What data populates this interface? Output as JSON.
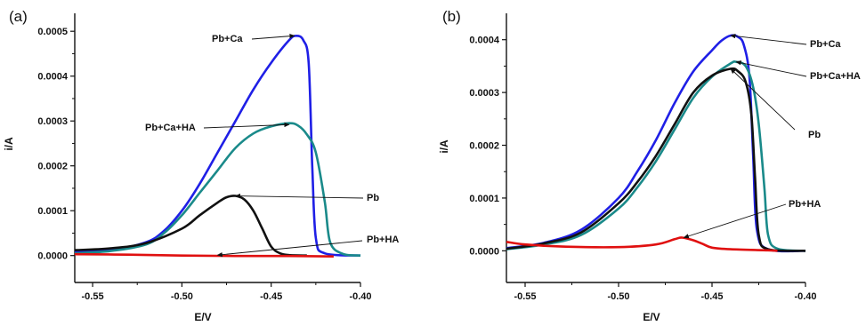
{
  "chart_data": [
    {
      "panel_label": "(a)",
      "type": "line",
      "xlabel": "E/V",
      "ylabel": "i/A",
      "xlim": [
        -0.56,
        -0.4
      ],
      "ylim": [
        -6e-05,
        0.00054
      ],
      "xticks": [
        -0.55,
        -0.5,
        -0.45,
        -0.4
      ],
      "xtick_labels": [
        "-0.55",
        "-0.50",
        "-0.45",
        "-0.40"
      ],
      "yticks": [
        0.0,
        0.0001,
        0.0002,
        0.0003,
        0.0004,
        0.0005
      ],
      "ytick_labels": [
        "0.0000",
        "0.0001",
        "0.0002",
        "0.0003",
        "0.0004",
        "0.0005"
      ],
      "grid": false,
      "series": [
        {
          "name": "Pb+Ca",
          "color": "#1f1fe6",
          "points": [
            [
              -0.56,
              8e-06
            ],
            [
              -0.54,
              1.2e-05
            ],
            [
              -0.52,
              3e-05
            ],
            [
              -0.51,
              5.5e-05
            ],
            [
              -0.5,
              0.0001
            ],
            [
              -0.49,
              0.00016
            ],
            [
              -0.48,
              0.00023
            ],
            [
              -0.47,
              0.0003
            ],
            [
              -0.46,
              0.00037
            ],
            [
              -0.45,
              0.00043
            ],
            [
              -0.44,
              0.00048
            ],
            [
              -0.436,
              0.00049
            ],
            [
              -0.432,
              0.00048
            ],
            [
              -0.429,
              0.00043
            ],
            [
              -0.427,
              0.0002
            ],
            [
              -0.425,
              4e-05
            ],
            [
              -0.42,
              5e-06
            ],
            [
              -0.4,
              0.0
            ]
          ]
        },
        {
          "name": "Pb+Ca+HA",
          "color": "#1a8a8a",
          "points": [
            [
              -0.56,
              5e-06
            ],
            [
              -0.54,
              1e-05
            ],
            [
              -0.52,
              2.5e-05
            ],
            [
              -0.51,
              5e-05
            ],
            [
              -0.5,
              9e-05
            ],
            [
              -0.49,
              0.00014
            ],
            [
              -0.48,
              0.00019
            ],
            [
              -0.47,
              0.00024
            ],
            [
              -0.46,
              0.000272
            ],
            [
              -0.45,
              0.000288
            ],
            [
              -0.44,
              0.000295
            ],
            [
              -0.435,
              0.00029
            ],
            [
              -0.43,
              0.00027
            ],
            [
              -0.425,
              0.00023
            ],
            [
              -0.42,
              0.00012
            ],
            [
              -0.417,
              3e-05
            ],
            [
              -0.41,
              4e-06
            ],
            [
              -0.4,
              0.0
            ]
          ]
        },
        {
          "name": "Pb",
          "color": "#111111",
          "points": [
            [
              -0.56,
              1.2e-05
            ],
            [
              -0.54,
              1.6e-05
            ],
            [
              -0.52,
              2.8e-05
            ],
            [
              -0.5,
              6e-05
            ],
            [
              -0.49,
              9e-05
            ],
            [
              -0.48,
              0.000118
            ],
            [
              -0.475,
              0.00013
            ],
            [
              -0.47,
              0.000133
            ],
            [
              -0.465,
              0.000125
            ],
            [
              -0.46,
              0.0001
            ],
            [
              -0.455,
              6e-05
            ],
            [
              -0.45,
              2e-05
            ],
            [
              -0.445,
              5e-06
            ],
            [
              -0.44,
              1e-06
            ],
            [
              -0.43,
              0.0
            ]
          ]
        },
        {
          "name": "Pb+HA",
          "color": "#e01010",
          "points": [
            [
              -0.56,
              3e-06
            ],
            [
              -0.53,
              2e-06
            ],
            [
              -0.5,
              0.0
            ],
            [
              -0.47,
              -1e-06
            ],
            [
              -0.44,
              -1e-06
            ],
            [
              -0.415,
              -2e-06
            ]
          ]
        }
      ],
      "annotations": [
        {
          "text": "Pb+Ca",
          "target": [
            -0.437,
            0.00049
          ]
        },
        {
          "text": "Pb+Ca+HA",
          "target": [
            -0.44,
            0.000292
          ]
        },
        {
          "text": "Pb",
          "target": [
            -0.47,
            0.000133
          ]
        },
        {
          "text": "Pb+HA",
          "target": [
            -0.48,
            1e-06
          ]
        }
      ]
    },
    {
      "panel_label": "(b)",
      "type": "line",
      "xlabel": "E/V",
      "ylabel": "i/A",
      "xlim": [
        -0.56,
        -0.4
      ],
      "ylim": [
        -6e-05,
        0.00045
      ],
      "xticks": [
        -0.55,
        -0.5,
        -0.45,
        -0.4
      ],
      "xtick_labels": [
        "-0.55",
        "-0.50",
        "-0.45",
        "-0.40"
      ],
      "yticks": [
        0.0,
        0.0001,
        0.0002,
        0.0003,
        0.0004
      ],
      "ytick_labels": [
        "0.0000",
        "0.0001",
        "0.0002",
        "0.0003",
        "0.0004"
      ],
      "grid": false,
      "series": [
        {
          "name": "Pb+Ca",
          "color": "#1f1fe6",
          "points": [
            [
              -0.56,
              5e-06
            ],
            [
              -0.54,
              1.5e-05
            ],
            [
              -0.52,
              4e-05
            ],
            [
              -0.5,
              0.0001
            ],
            [
              -0.49,
              0.00015
            ],
            [
              -0.48,
              0.00021
            ],
            [
              -0.47,
              0.00028
            ],
            [
              -0.46,
              0.00034
            ],
            [
              -0.45,
              0.00038
            ],
            [
              -0.445,
              0.000398
            ],
            [
              -0.44,
              0.000408
            ],
            [
              -0.436,
              0.000405
            ],
            [
              -0.433,
              0.00039
            ],
            [
              -0.43,
              0.00033
            ],
            [
              -0.428,
              0.00018
            ],
            [
              -0.426,
              4e-05
            ],
            [
              -0.42,
              3e-06
            ],
            [
              -0.4,
              0.0
            ]
          ]
        },
        {
          "name": "Pb+Ca+HA",
          "color": "#1a8a8a",
          "points": [
            [
              -0.56,
              3e-06
            ],
            [
              -0.54,
              1.2e-05
            ],
            [
              -0.52,
              3e-05
            ],
            [
              -0.5,
              8e-05
            ],
            [
              -0.49,
              0.00012
            ],
            [
              -0.48,
              0.00017
            ],
            [
              -0.47,
              0.00023
            ],
            [
              -0.46,
              0.00029
            ],
            [
              -0.45,
              0.00033
            ],
            [
              -0.44,
              0.000355
            ],
            [
              -0.437,
              0.000358
            ],
            [
              -0.432,
              0.00035
            ],
            [
              -0.428,
              0.00031
            ],
            [
              -0.425,
              0.00024
            ],
            [
              -0.422,
              0.00012
            ],
            [
              -0.42,
              3e-05
            ],
            [
              -0.415,
              4e-06
            ],
            [
              -0.4,
              0.0
            ]
          ]
        },
        {
          "name": "Pb",
          "color": "#111111",
          "points": [
            [
              -0.56,
              4e-06
            ],
            [
              -0.54,
              1.4e-05
            ],
            [
              -0.52,
              3.5e-05
            ],
            [
              -0.5,
              9e-05
            ],
            [
              -0.49,
              0.00013
            ],
            [
              -0.48,
              0.00018
            ],
            [
              -0.47,
              0.00024
            ],
            [
              -0.46,
              0.0003
            ],
            [
              -0.45,
              0.000332
            ],
            [
              -0.44,
              0.000345
            ],
            [
              -0.436,
              0.00034
            ],
            [
              -0.432,
              0.00032
            ],
            [
              -0.429,
              0.00026
            ],
            [
              -0.427,
              0.00014
            ],
            [
              -0.425,
              3e-05
            ],
            [
              -0.42,
              3e-06
            ],
            [
              -0.4,
              0.0
            ]
          ]
        },
        {
          "name": "Pb+HA",
          "color": "#e01010",
          "points": [
            [
              -0.56,
              1.7e-05
            ],
            [
              -0.55,
              1.2e-05
            ],
            [
              -0.53,
              8e-06
            ],
            [
              -0.5,
              7e-06
            ],
            [
              -0.48,
              1.2e-05
            ],
            [
              -0.47,
              2.2e-05
            ],
            [
              -0.466,
              2.5e-05
            ],
            [
              -0.46,
              2e-05
            ],
            [
              -0.455,
              1.3e-05
            ],
            [
              -0.45,
              6e-06
            ],
            [
              -0.44,
              3e-06
            ],
            [
              -0.42,
              1e-06
            ],
            [
              -0.415,
              0.0
            ]
          ]
        }
      ],
      "annotations": [
        {
          "text": "Pb+Ca",
          "target": [
            -0.44,
            0.000408
          ]
        },
        {
          "text": "Pb+Ca+HA",
          "target": [
            -0.437,
            0.000358
          ]
        },
        {
          "text": "Pb",
          "target": [
            -0.44,
            0.000345
          ]
        },
        {
          "text": "Pb+HA",
          "target": [
            -0.465,
            2.5e-05
          ]
        }
      ]
    }
  ]
}
